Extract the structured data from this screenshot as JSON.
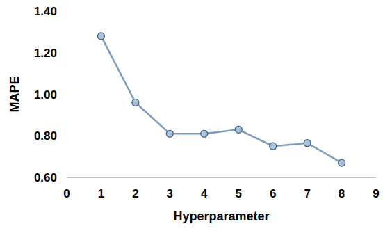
{
  "chart_data": {
    "type": "line",
    "x_label": "Hyperparameter",
    "y_label": "MAPE",
    "x": [
      1,
      2,
      3,
      4,
      5,
      6,
      7,
      8
    ],
    "values": [
      1.28,
      0.96,
      0.81,
      0.81,
      0.83,
      0.75,
      0.765,
      0.67
    ],
    "color": "#7d9bbd",
    "marker": "circle",
    "xlim": [
      0,
      9
    ],
    "xticks": [
      0,
      1,
      2,
      3,
      4,
      5,
      6,
      7,
      8,
      9
    ],
    "ylim": [
      0.6,
      1.4
    ],
    "yticks": [
      {
        "value": 0.6,
        "label": "0.60"
      },
      {
        "value": 0.8,
        "label": "0.80"
      },
      {
        "value": 1.0,
        "label": "1.00"
      },
      {
        "value": 1.2,
        "label": "1.20"
      },
      {
        "value": 1.4,
        "label": "1.40"
      }
    ],
    "grid": false
  }
}
